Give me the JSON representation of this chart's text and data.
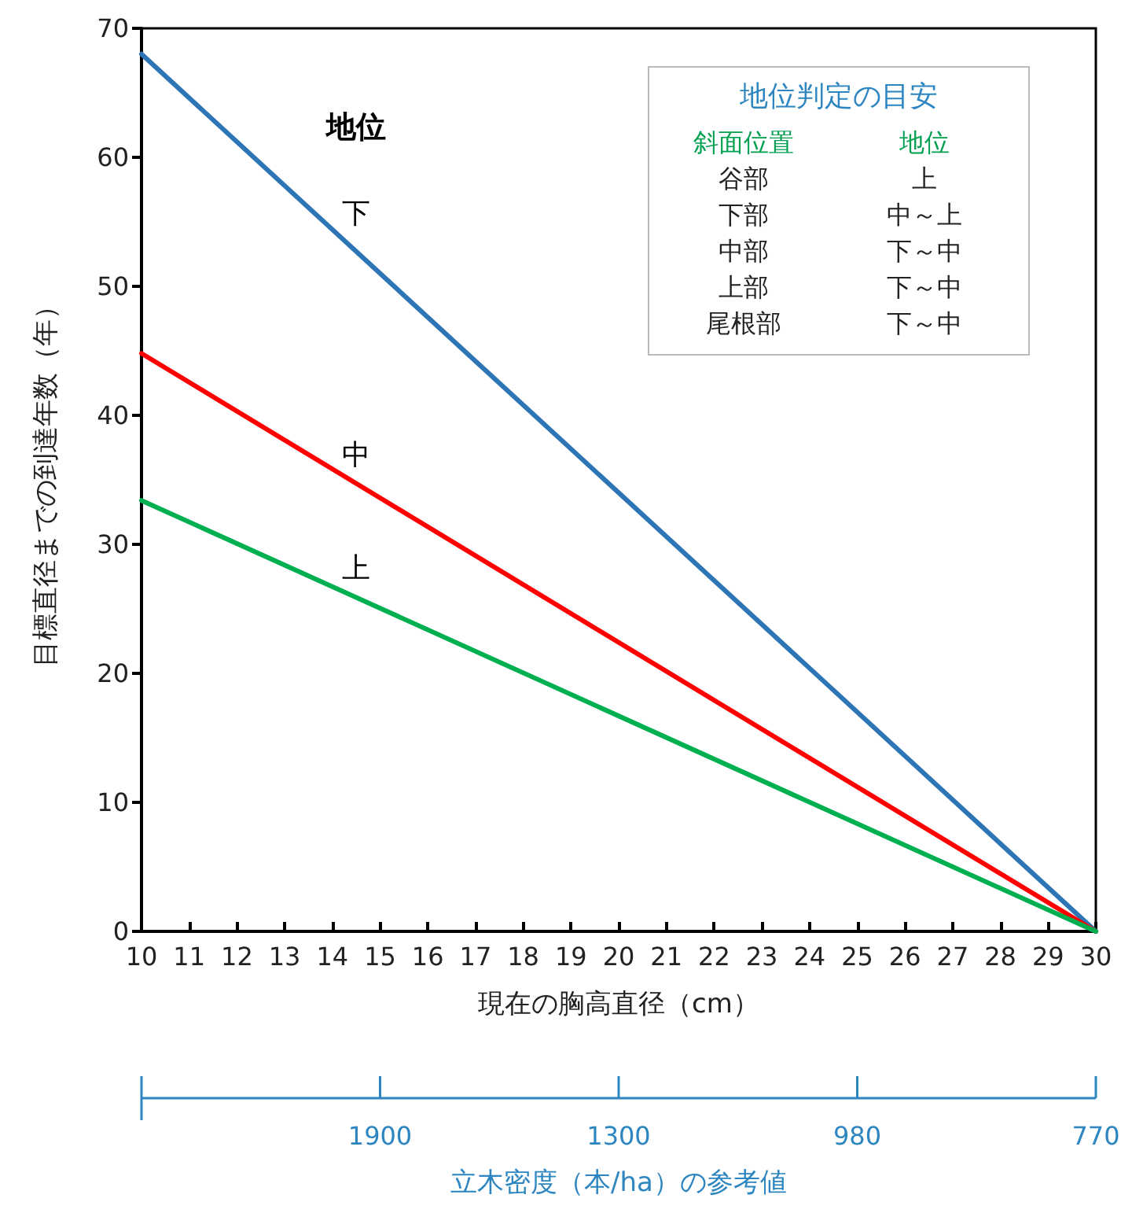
{
  "chart_data": {
    "type": "line",
    "xlabel": "現在の胸高直径（cm）",
    "ylabel": "目標直径までの到達年数（年）",
    "x": [
      10,
      30
    ],
    "series": [
      {
        "name": "下",
        "color": "#2e75b6",
        "values": [
          68,
          0
        ]
      },
      {
        "name": "中",
        "color": "#ff0000",
        "values": [
          44.8,
          0
        ]
      },
      {
        "name": "上",
        "color": "#00b050",
        "values": [
          33.4,
          0
        ]
      }
    ],
    "xlim": [
      10,
      30
    ],
    "xticks": [
      10,
      11,
      12,
      13,
      14,
      15,
      16,
      17,
      18,
      19,
      20,
      21,
      22,
      23,
      24,
      25,
      26,
      27,
      28,
      29,
      30
    ],
    "ylim": [
      0,
      70
    ],
    "yticks": [
      0,
      10,
      20,
      30,
      40,
      50,
      60,
      70
    ],
    "x2label": "立木密度（本/ha）の参考値",
    "annotations": [
      "地位",
      "地位判定の目安",
      "斜面位置",
      "地位",
      "谷部",
      "上",
      "下部",
      "中～上",
      "中部",
      "下～中",
      "上部",
      "下～中",
      "尾根部",
      "下～中",
      "1900",
      "1300",
      "980",
      "770"
    ],
    "grid": false,
    "legend": false,
    "marker": "none",
    "line_style": "solid"
  }
}
